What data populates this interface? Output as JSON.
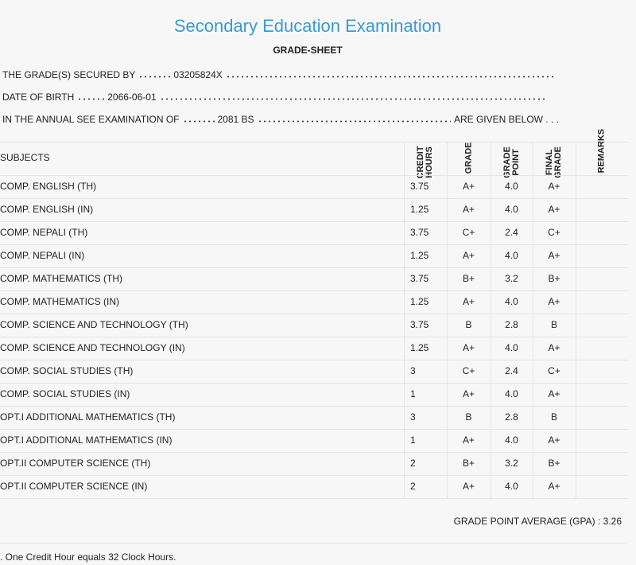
{
  "header": {
    "title": "Secondary Education Examination",
    "subtitle": "GRADE-SHEET"
  },
  "info": [
    {
      "label": "THE GRADE(S) SECURED BY",
      "value": "03205824X"
    },
    {
      "label": "DATE OF BIRTH",
      "value": "2066-06-01"
    },
    {
      "label": "IN THE ANNUAL SEE EXAMINATION OF",
      "value": "2081 BS",
      "suffix": "ARE GIVEN BELOW . . ."
    }
  ],
  "table": {
    "columns": [
      "SUBJECTS",
      "CREDIT HOURS",
      "GRADE",
      "GRADE POINT",
      "FINAL GRADE",
      "REMARKS"
    ],
    "rows": [
      [
        "COMP. ENGLISH (TH)",
        "3.75",
        "A+",
        "4.0",
        "A+"
      ],
      [
        "COMP. ENGLISH (IN)",
        "1.25",
        "A+",
        "4.0",
        "A+"
      ],
      [
        "COMP. NEPALI (TH)",
        "3.75",
        "C+",
        "2.4",
        "C+"
      ],
      [
        "COMP. NEPALI (IN)",
        "1.25",
        "A+",
        "4.0",
        "A+"
      ],
      [
        "COMP. MATHEMATICS (TH)",
        "3.75",
        "B+",
        "3.2",
        "B+"
      ],
      [
        "COMP. MATHEMATICS (IN)",
        "1.25",
        "A+",
        "4.0",
        "A+"
      ],
      [
        "COMP. SCIENCE AND TECHNOLOGY (TH)",
        "3.75",
        "B",
        "2.8",
        "B"
      ],
      [
        "COMP. SCIENCE AND TECHNOLOGY (IN)",
        "1.25",
        "A+",
        "4.0",
        "A+"
      ],
      [
        "COMP. SOCIAL STUDIES (TH)",
        "3",
        "C+",
        "2.4",
        "C+"
      ],
      [
        "COMP. SOCIAL STUDIES (IN)",
        "1",
        "A+",
        "4.0",
        "A+"
      ],
      [
        "OPT.I ADDITIONAL MATHEMATICS (TH)",
        "3",
        "B",
        "2.8",
        "B"
      ],
      [
        "OPT.I ADDITIONAL MATHEMATICS (IN)",
        "1",
        "A+",
        "4.0",
        "A+"
      ],
      [
        "OPT.II COMPUTER SCIENCE (TH)",
        "2",
        "B+",
        "3.2",
        "B+"
      ],
      [
        "OPT.II COMPUTER SCIENCE (IN)",
        "2",
        "A+",
        "4.0",
        "A+"
      ]
    ]
  },
  "gpa": {
    "label": "GRADE POINT AVERAGE (GPA) :",
    "value": "3.26"
  },
  "footnote": ". One Credit Hour equals 32 Clock Hours."
}
